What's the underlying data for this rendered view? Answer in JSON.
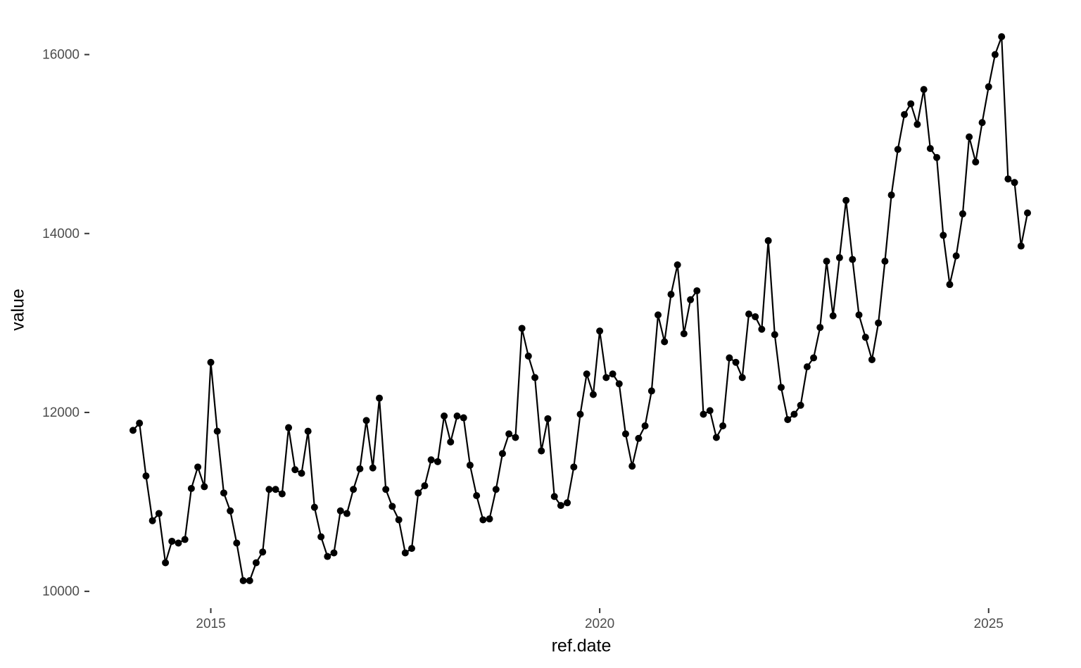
{
  "chart_data": {
    "type": "line",
    "x_label": "ref.date",
    "y_label": "value",
    "color": "#000000",
    "markers": true,
    "grid": false,
    "xlim": [
      2013.43,
      2026.07
    ],
    "xticks": [
      2015,
      2020,
      2025
    ],
    "ylim": [
      9820,
      16500
    ],
    "yticks": [
      10000,
      12000,
      14000,
      16000
    ],
    "x": [
      2014,
      2014.083,
      2014.167,
      2014.25,
      2014.333,
      2014.417,
      2014.5,
      2014.583,
      2014.667,
      2014.75,
      2014.833,
      2014.917,
      2015,
      2015.083,
      2015.167,
      2015.25,
      2015.333,
      2015.417,
      2015.5,
      2015.583,
      2015.667,
      2015.75,
      2015.833,
      2015.917,
      2016,
      2016.083,
      2016.167,
      2016.25,
      2016.333,
      2016.417,
      2016.5,
      2016.583,
      2016.667,
      2016.75,
      2016.833,
      2016.917,
      2017,
      2017.083,
      2017.167,
      2017.25,
      2017.333,
      2017.417,
      2017.5,
      2017.583,
      2017.667,
      2017.75,
      2017.833,
      2017.917,
      2018,
      2018.083,
      2018.167,
      2018.25,
      2018.333,
      2018.417,
      2018.5,
      2018.583,
      2018.667,
      2018.75,
      2018.833,
      2018.917,
      2019,
      2019.083,
      2019.167,
      2019.25,
      2019.333,
      2019.417,
      2019.5,
      2019.583,
      2019.667,
      2019.75,
      2019.833,
      2019.917,
      2020,
      2020.083,
      2020.167,
      2020.25,
      2020.333,
      2020.417,
      2020.5,
      2020.583,
      2020.667,
      2020.75,
      2020.833,
      2020.917,
      2021,
      2021.083,
      2021.167,
      2021.25,
      2021.333,
      2021.417,
      2021.5,
      2021.583,
      2021.667,
      2021.75,
      2021.833,
      2021.917,
      2022,
      2022.083,
      2022.167,
      2022.25,
      2022.333,
      2022.417,
      2022.5,
      2022.583,
      2022.667,
      2022.75,
      2022.833,
      2022.917,
      2023,
      2023.083,
      2023.167,
      2023.25,
      2023.333,
      2023.417,
      2023.5,
      2023.583,
      2023.667,
      2023.75,
      2023.833,
      2023.917,
      2024,
      2024.083,
      2024.167,
      2024.25,
      2024.333,
      2024.417,
      2024.5,
      2024.583,
      2024.667,
      2024.75,
      2024.833,
      2024.917,
      2025,
      2025.083,
      2025.167,
      2025.25,
      2025.333,
      2025.417,
      2025.5
    ],
    "values": [
      11800,
      11880,
      11290,
      10790,
      10870,
      10320,
      10560,
      10540,
      10580,
      11150,
      11390,
      11170,
      12560,
      11790,
      11100,
      10900,
      10540,
      10120,
      10120,
      10320,
      10440,
      11140,
      11140,
      11090,
      11830,
      11360,
      11320,
      11790,
      10940,
      10610,
      10390,
      10430,
      10900,
      10870,
      11140,
      11370,
      11910,
      11380,
      12160,
      11140,
      10950,
      10800,
      10430,
      10480,
      11100,
      11180,
      11470,
      11450,
      11960,
      11670,
      11960,
      11940,
      11410,
      11070,
      10800,
      10810,
      11140,
      11540,
      11760,
      11720,
      12940,
      12630,
      12390,
      11570,
      11930,
      11060,
      10960,
      10990,
      11390,
      11980,
      12430,
      12200,
      12910,
      12390,
      12430,
      12320,
      11760,
      11400,
      11710,
      11850,
      12240,
      13090,
      12790,
      13320,
      13650,
      12880,
      13260,
      13360,
      11980,
      12020,
      11720,
      11850,
      12610,
      12560,
      12390,
      13100,
      13070,
      12930,
      13920,
      12870,
      12280,
      11920,
      11980,
      12080,
      12510,
      12610,
      12950,
      13690,
      13080,
      13730,
      14370,
      13710,
      13090,
      12840,
      12590,
      13000,
      13690,
      14430,
      14940,
      15330,
      15450,
      15220,
      15610,
      14950,
      14850,
      13980,
      13430,
      13750,
      14220,
      15080,
      14800,
      15240,
      15640,
      16000,
      16200,
      14610,
      14570,
      13860,
      14230
    ]
  }
}
